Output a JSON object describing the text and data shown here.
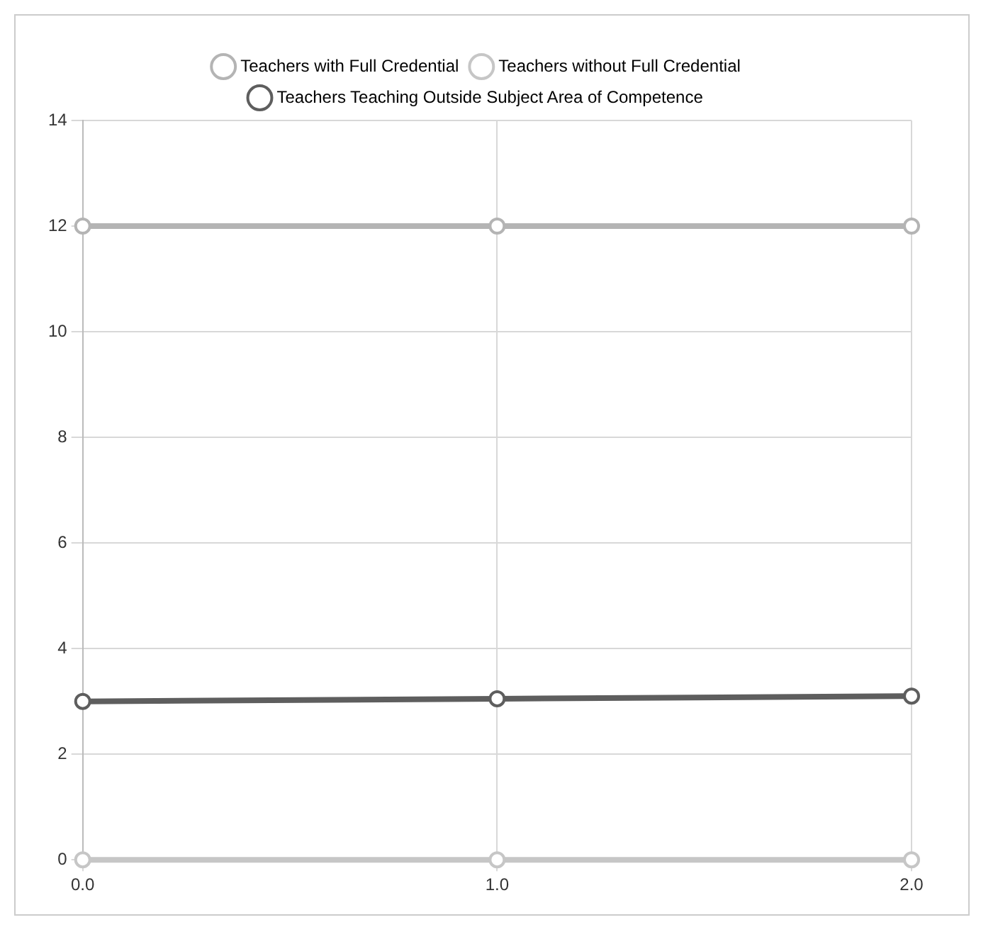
{
  "chart_data": {
    "type": "line",
    "x": [
      0,
      1,
      2
    ],
    "series": [
      {
        "name": "Teachers with Full Credential",
        "color": "#b4b4b4",
        "values": [
          12,
          12,
          12
        ]
      },
      {
        "name": "Teachers without Full Credential",
        "color": "#c6c6c6",
        "values": [
          0,
          0,
          0
        ]
      },
      {
        "name": "Teachers Teaching Outside Subject Area of Competence",
        "color": "#5e5e5e",
        "values": [
          3,
          3.05,
          3.1
        ]
      }
    ],
    "xlim": [
      0,
      2
    ],
    "xticks": [
      {
        "value": 0,
        "label": "0.0"
      },
      {
        "value": 1,
        "label": "1.0"
      },
      {
        "value": 2,
        "label": "2.0"
      }
    ],
    "ylim": [
      0,
      14
    ],
    "yticks": [
      0,
      2,
      4,
      6,
      8,
      10,
      12,
      14
    ],
    "grid": true,
    "legend": "top",
    "marker": "circle",
    "line_style": "solid"
  }
}
